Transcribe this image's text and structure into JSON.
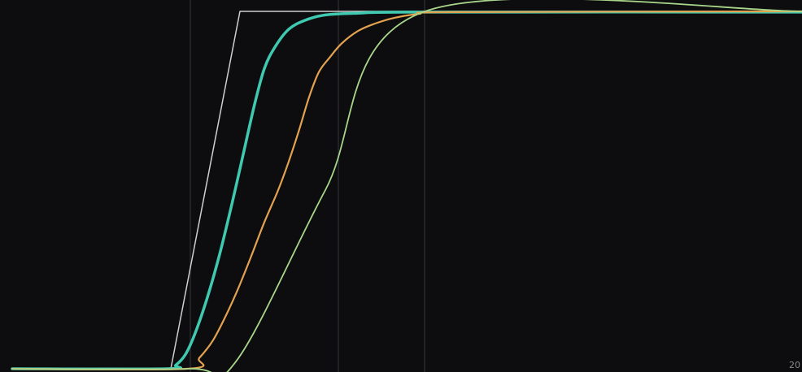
{
  "chart_data": {
    "type": "line",
    "title": "",
    "xlabel": "",
    "ylabel": "",
    "xlim": [
      0,
      986
    ],
    "ylim": [
      0,
      1
    ],
    "grid": false,
    "legend": "none",
    "background": "#0d0d0f",
    "vlines": [
      {
        "x": 234,
        "color": "#2a2a2e"
      },
      {
        "x": 416,
        "color": "#2a2a2e"
      },
      {
        "x": 522,
        "color": "#2a2a2e"
      }
    ],
    "corner_tick": "20",
    "series": [
      {
        "color": "#cfcfcf",
        "points": [
          [
            15,
            0
          ],
          [
            210,
            0
          ],
          [
            295,
            1
          ],
          [
            986,
            1
          ]
        ]
      },
      {
        "color": "#3fc9b0",
        "points": [
          [
            15,
            0
          ],
          [
            205,
            0
          ],
          [
            216,
            0.01
          ],
          [
            228,
            0.04
          ],
          [
            240,
            0.1
          ],
          [
            255,
            0.2
          ],
          [
            270,
            0.32
          ],
          [
            285,
            0.46
          ],
          [
            300,
            0.61
          ],
          [
            313,
            0.74
          ],
          [
            325,
            0.84
          ],
          [
            338,
            0.9
          ],
          [
            355,
            0.95
          ],
          [
            375,
            0.975
          ],
          [
            400,
            0.99
          ],
          [
            440,
            0.995
          ],
          [
            520,
            0.998
          ],
          [
            986,
            0.998
          ]
        ]
      },
      {
        "color": "#e3a24f",
        "points": [
          [
            15,
            0
          ],
          [
            230,
            0
          ],
          [
            245,
            0.03
          ],
          [
            262,
            0.08
          ],
          [
            278,
            0.15
          ],
          [
            292,
            0.22
          ],
          [
            308,
            0.31
          ],
          [
            325,
            0.41
          ],
          [
            342,
            0.5
          ],
          [
            355,
            0.58
          ],
          [
            368,
            0.67
          ],
          [
            380,
            0.76
          ],
          [
            392,
            0.83
          ],
          [
            405,
            0.87
          ],
          [
            420,
            0.91
          ],
          [
            440,
            0.945
          ],
          [
            460,
            0.965
          ],
          [
            485,
            0.982
          ],
          [
            515,
            0.993
          ],
          [
            560,
            0.998
          ],
          [
            986,
            1
          ]
        ]
      },
      {
        "color": "#a9d68a",
        "points": [
          [
            15,
            0
          ],
          [
            232,
            0
          ],
          [
            290,
            0.02
          ],
          [
            400,
            0.5
          ],
          [
            520,
            0.998
          ],
          [
            986,
            1
          ]
        ]
      }
    ]
  }
}
